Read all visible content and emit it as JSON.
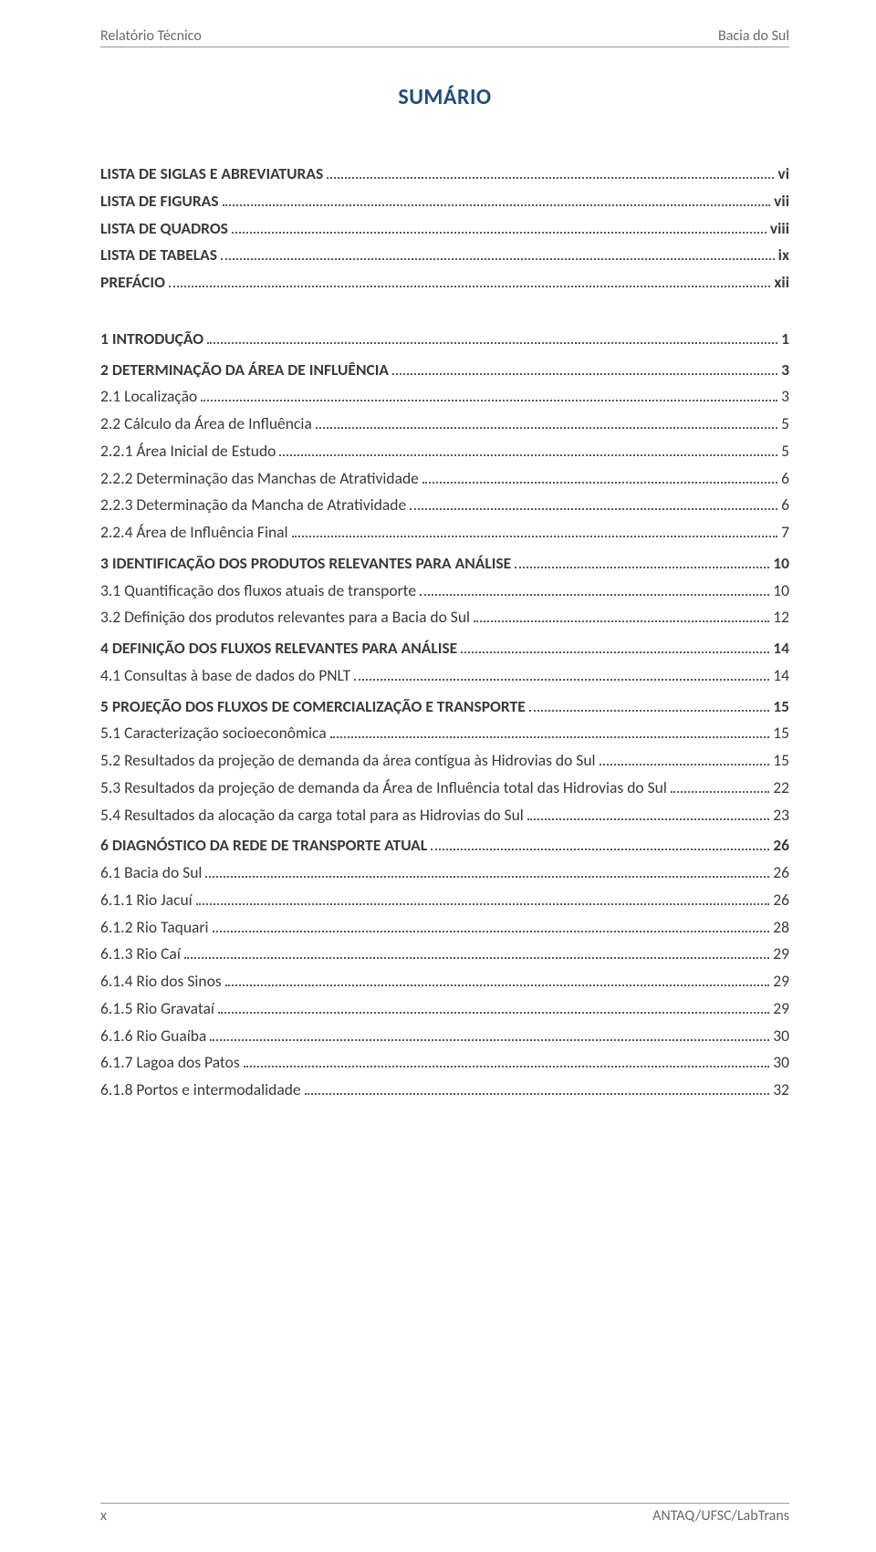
{
  "header_left": "Relatório Técnico",
  "header_right": "Bacia do Sul",
  "title": "SUMÁRIO",
  "footer_left": "x",
  "footer_right": "ANTAQ/UFSC/LabTrans",
  "front_matter": [
    {
      "label": "LISTA DE SIGLAS E ABREVIATURAS",
      "page": "vi"
    },
    {
      "label": "LISTA DE FIGURAS",
      "page": "vii"
    },
    {
      "label": "LISTA DE QUADROS",
      "page": "viii"
    },
    {
      "label": "LISTA DE TABELAS",
      "page": "ix"
    },
    {
      "label": "PREFÁCIO",
      "page": "xii"
    }
  ],
  "sec1": {
    "label": "1   INTRODUÇÃO",
    "page": "1"
  },
  "sec2": {
    "head": {
      "label": "2   DETERMINAÇÃO DA ÁREA DE INFLUÊNCIA",
      "page": "3"
    },
    "items": [
      {
        "label": "2.1  Localização",
        "page": "3"
      },
      {
        "label": "2.2  Cálculo da Área de Influência",
        "page": "5"
      },
      {
        "label": "2.2.1  Área Inicial de Estudo",
        "page": "5"
      },
      {
        "label": "2.2.2  Determinação das Manchas de Atratividade",
        "page": "6"
      },
      {
        "label": "2.2.3  Determinação da Mancha de Atratividade",
        "page": "6"
      },
      {
        "label": "2.2.4  Área de Influência Final",
        "page": "7"
      }
    ]
  },
  "sec3": {
    "head": {
      "label": "3   IDENTIFICAÇÃO DOS PRODUTOS RELEVANTES PARA ANÁLISE",
      "page": "10"
    },
    "items": [
      {
        "label": "3.1  Quantificação dos fluxos atuais de transporte",
        "page": "10"
      },
      {
        "label": "3.2  Definição dos produtos relevantes para a Bacia do Sul",
        "page": "12"
      }
    ]
  },
  "sec4": {
    "head": {
      "label": "4   DEFINIÇÃO DOS FLUXOS RELEVANTES PARA ANÁLISE",
      "page": "14"
    },
    "items": [
      {
        "label": "4.1  Consultas à base de dados do PNLT",
        "page": "14"
      }
    ]
  },
  "sec5": {
    "head": {
      "label": "5   PROJEÇÃO DOS FLUXOS DE COMERCIALIZAÇÃO E TRANSPORTE",
      "page": "15"
    },
    "items": [
      {
        "label": "5.1  Caracterização socioeconômica",
        "page": "15"
      },
      {
        "label": "5.2  Resultados da projeção de demanda da área contígua às Hidrovias do Sul",
        "page": "15"
      },
      {
        "label": "5.3  Resultados da projeção de demanda da Área de Influência total das Hidrovias do Sul",
        "page": "22"
      },
      {
        "label": "5.4  Resultados da alocação da carga total para as Hidrovias do Sul",
        "page": "23"
      }
    ]
  },
  "sec6": {
    "head": {
      "label": "6   DIAGNÓSTICO DA REDE DE TRANSPORTE ATUAL",
      "page": "26"
    },
    "items": [
      {
        "label": "6.1  Bacia do Sul",
        "page": "26"
      },
      {
        "label": "6.1.1  Rio Jacuí",
        "page": "26"
      },
      {
        "label": "6.1.2  Rio Taquari",
        "page": "28"
      },
      {
        "label": "6.1.3  Rio Caí",
        "page": "29"
      },
      {
        "label": "6.1.4  Rio dos Sinos",
        "page": "29"
      },
      {
        "label": "6.1.5  Rio Gravataí",
        "page": "29"
      },
      {
        "label": "6.1.6  Rio Guaíba",
        "page": "30"
      },
      {
        "label": "6.1.7  Lagoa dos Patos",
        "page": "30"
      },
      {
        "label": "6.1.8  Portos e intermodalidade",
        "page": "32"
      }
    ]
  }
}
